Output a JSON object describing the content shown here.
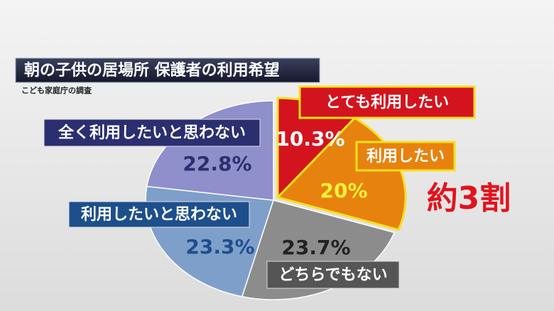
{
  "chart_data": {
    "type": "pie",
    "title": "朝の子供の居場所 保護者の利用希望",
    "subtitle": "こども家庭庁の調査",
    "categories": [
      "とても利用したい",
      "利用したい",
      "どちらでもない",
      "利用したいと思わない",
      "全く利用したいと思わない"
    ],
    "values": [
      10.3,
      20,
      23.7,
      23.3,
      22.8
    ],
    "value_labels": [
      "10.3%",
      "20%",
      "23.7%",
      "23.3%",
      "22.8%"
    ],
    "colors": [
      "#d3141e",
      "#e8820e",
      "#8c8c8c",
      "#7f9fcb",
      "#8f8fcb"
    ],
    "annotation": "約3割"
  }
}
